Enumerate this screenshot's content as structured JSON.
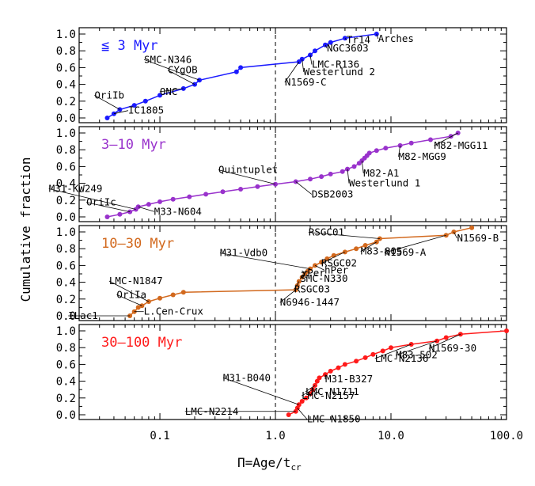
{
  "figure": {
    "ylabel": "Cumulative fraction",
    "xlabel_main": "Π=Age/t",
    "xlabel_sub": "cr",
    "xticks": [
      {
        "v": 0.1,
        "label": "0.1"
      },
      {
        "v": 1,
        "label": "1.0"
      },
      {
        "v": 10,
        "label": "10.0"
      },
      {
        "v": 100,
        "label": "100.0"
      }
    ],
    "yticks": [
      {
        "v": 0.0,
        "label": "0.0"
      },
      {
        "v": 0.2,
        "label": "0.2"
      },
      {
        "v": 0.4,
        "label": "0.4"
      },
      {
        "v": 0.6,
        "label": "0.6"
      },
      {
        "v": 0.8,
        "label": "0.8"
      },
      {
        "v": 1.0,
        "label": "1.0"
      }
    ],
    "vline_x": 1.0
  },
  "chart_data": [
    {
      "type": "line",
      "panel": "≦ 3 Myr",
      "title": "≦ 3 Myr",
      "color": "#1a1aff",
      "xscale": "log",
      "xlim": [
        0.02,
        100
      ],
      "ylim": [
        0,
        1.05
      ],
      "grid": false,
      "vline": 1.0,
      "points": [
        [
          0.035,
          0.0
        ],
        [
          0.04,
          0.05
        ],
        [
          0.045,
          0.1
        ],
        [
          0.06,
          0.15
        ],
        [
          0.075,
          0.2
        ],
        [
          0.1,
          0.27
        ],
        [
          0.16,
          0.35
        ],
        [
          0.2,
          0.4
        ],
        [
          0.22,
          0.45
        ],
        [
          0.46,
          0.55
        ],
        [
          0.5,
          0.6
        ],
        [
          1.6,
          0.67
        ],
        [
          1.7,
          0.7
        ],
        [
          2.0,
          0.75
        ],
        [
          2.2,
          0.8
        ],
        [
          2.7,
          0.87
        ],
        [
          3.0,
          0.9
        ],
        [
          4.0,
          0.95
        ],
        [
          7.5,
          1.0
        ]
      ],
      "labels": [
        {
          "text": "OriIb",
          "x": 0.045,
          "y": 0.1
        },
        {
          "text": "IC1805",
          "x": 0.04,
          "y": 0.05
        },
        {
          "text": "ONC",
          "x": 0.16,
          "y": 0.35
        },
        {
          "text": "CYgOB",
          "x": 0.2,
          "y": 0.4
        },
        {
          "text": "SMC-N346",
          "x": 0.22,
          "y": 0.45
        },
        {
          "text": "N1569-C",
          "x": 1.6,
          "y": 0.67
        },
        {
          "text": "Westerlund 2",
          "x": 1.7,
          "y": 0.7
        },
        {
          "text": "LMC-R136",
          "x": 2.0,
          "y": 0.75
        },
        {
          "text": "NGC3603",
          "x": 2.7,
          "y": 0.87
        },
        {
          "text": "Tr14",
          "x": 4.0,
          "y": 0.95
        },
        {
          "text": "Arches",
          "x": 7.5,
          "y": 1.0
        }
      ]
    },
    {
      "type": "line",
      "panel": "3–10 Myr",
      "title": "3–10 Myr",
      "color": "#9932cc",
      "xscale": "log",
      "xlim": [
        0.02,
        100
      ],
      "ylim": [
        0,
        1.05
      ],
      "grid": false,
      "vline": 1.0,
      "points": [
        [
          0.035,
          0.0
        ],
        [
          0.045,
          0.03
        ],
        [
          0.055,
          0.06
        ],
        [
          0.062,
          0.09
        ],
        [
          0.065,
          0.12
        ],
        [
          0.08,
          0.15
        ],
        [
          0.1,
          0.18
        ],
        [
          0.13,
          0.21
        ],
        [
          0.18,
          0.24
        ],
        [
          0.25,
          0.27
        ],
        [
          0.35,
          0.3
        ],
        [
          0.5,
          0.33
        ],
        [
          0.7,
          0.36
        ],
        [
          1.0,
          0.39
        ],
        [
          1.5,
          0.42
        ],
        [
          2.0,
          0.45
        ],
        [
          2.5,
          0.48
        ],
        [
          3.0,
          0.51
        ],
        [
          3.8,
          0.54
        ],
        [
          4.2,
          0.57
        ],
        [
          4.8,
          0.6
        ],
        [
          5.3,
          0.64
        ],
        [
          5.6,
          0.67
        ],
        [
          5.9,
          0.7
        ],
        [
          6.2,
          0.73
        ],
        [
          6.5,
          0.76
        ],
        [
          7.5,
          0.79
        ],
        [
          9.0,
          0.82
        ],
        [
          12.0,
          0.85
        ],
        [
          15.0,
          0.88
        ],
        [
          22.0,
          0.92
        ],
        [
          33.0,
          0.96
        ],
        [
          38.0,
          1.0
        ]
      ],
      "labels": [
        {
          "text": "M31-KW249",
          "x": 0.062,
          "y": 0.09
        },
        {
          "text": "OriIc",
          "x": 0.055,
          "y": 0.06
        },
        {
          "text": "M33-N604",
          "x": 0.065,
          "y": 0.12
        },
        {
          "text": "Quintuplet",
          "x": 1.0,
          "y": 0.39
        },
        {
          "text": "DSB2003",
          "x": 1.5,
          "y": 0.42
        },
        {
          "text": "Westerlund 1",
          "x": 4.2,
          "y": 0.57
        },
        {
          "text": "M82-A1",
          "x": 5.6,
          "y": 0.67
        },
        {
          "text": "M82-MGG9",
          "x": 12.0,
          "y": 0.85
        },
        {
          "text": "M82-MGG11",
          "x": 38.0,
          "y": 1.0
        }
      ]
    },
    {
      "type": "line",
      "panel": "10–30 Myr",
      "title": "10–30 Myr",
      "color": "#d2691e",
      "xscale": "log",
      "xlim": [
        0.02,
        100
      ],
      "ylim": [
        0,
        1.05
      ],
      "grid": false,
      "vline": 1.0,
      "points": [
        [
          0.055,
          0.0
        ],
        [
          0.06,
          0.05
        ],
        [
          0.065,
          0.1
        ],
        [
          0.07,
          0.12
        ],
        [
          0.08,
          0.17
        ],
        [
          0.1,
          0.21
        ],
        [
          0.13,
          0.25
        ],
        [
          0.16,
          0.28
        ],
        [
          1.5,
          0.31
        ],
        [
          1.55,
          0.36
        ],
        [
          1.6,
          0.41
        ],
        [
          1.7,
          0.46
        ],
        [
          1.8,
          0.5
        ],
        [
          1.9,
          0.53
        ],
        [
          2.0,
          0.56
        ],
        [
          2.2,
          0.6
        ],
        [
          2.5,
          0.64
        ],
        [
          2.8,
          0.68
        ],
        [
          3.2,
          0.72
        ],
        [
          4.0,
          0.76
        ],
        [
          5.0,
          0.8
        ],
        [
          6.0,
          0.84
        ],
        [
          7.5,
          0.88
        ],
        [
          8.0,
          0.92
        ],
        [
          30.0,
          0.96
        ],
        [
          35.0,
          1.0
        ],
        [
          50.0,
          1.05
        ]
      ],
      "labels": [
        {
          "text": "ILac1",
          "x": 0.055,
          "y": 0.0
        },
        {
          "text": "L.Cen-Crux",
          "x": 0.06,
          "y": 0.05
        },
        {
          "text": "OriIa",
          "x": 0.07,
          "y": 0.12
        },
        {
          "text": "LMC-N1847",
          "x": 0.08,
          "y": 0.17
        },
        {
          "text": "N6946-1447",
          "x": 1.5,
          "y": 0.31
        },
        {
          "text": "RSGC03",
          "x": 1.6,
          "y": 0.41
        },
        {
          "text": "SMC-N330",
          "x": 1.8,
          "y": 0.5
        },
        {
          "text": "χPer",
          "x": 1.9,
          "y": 0.53
        },
        {
          "text": "hPer",
          "x": 2.2,
          "y": 0.6
        },
        {
          "text": "M31-Vdb0",
          "x": 2.0,
          "y": 0.56
        },
        {
          "text": "RSGC02",
          "x": 4.0,
          "y": 0.76
        },
        {
          "text": "M83-805",
          "x": 7.5,
          "y": 0.88
        },
        {
          "text": "RSGC01",
          "x": 8.0,
          "y": 0.92
        },
        {
          "text": "N1569-A",
          "x": 30.0,
          "y": 0.96
        },
        {
          "text": "N1569-B",
          "x": 35.0,
          "y": 1.0
        }
      ]
    },
    {
      "type": "line",
      "panel": "30–100 Myr",
      "title": "30–100 Myr",
      "color": "#ff1a1a",
      "xscale": "log",
      "xlim": [
        0.02,
        100
      ],
      "ylim": [
        0,
        1.05
      ],
      "grid": false,
      "vline": 1.0,
      "points": [
        [
          1.3,
          0.0
        ],
        [
          1.5,
          0.04
        ],
        [
          1.55,
          0.08
        ],
        [
          1.6,
          0.12
        ],
        [
          1.7,
          0.16
        ],
        [
          1.85,
          0.2
        ],
        [
          2.0,
          0.25
        ],
        [
          2.1,
          0.3
        ],
        [
          2.2,
          0.35
        ],
        [
          2.3,
          0.4
        ],
        [
          2.4,
          0.44
        ],
        [
          2.7,
          0.48
        ],
        [
          3.0,
          0.52
        ],
        [
          3.5,
          0.56
        ],
        [
          4.0,
          0.6
        ],
        [
          5.0,
          0.64
        ],
        [
          6.0,
          0.68
        ],
        [
          7.0,
          0.72
        ],
        [
          8.5,
          0.76
        ],
        [
          10.0,
          0.8
        ],
        [
          15.0,
          0.84
        ],
        [
          25.0,
          0.88
        ],
        [
          30.0,
          0.92
        ],
        [
          40.0,
          0.96
        ],
        [
          100.0,
          1.0
        ]
      ],
      "labels": [
        {
          "text": "LMC-N2214",
          "x": 1.5,
          "y": 0.04
        },
        {
          "text": "LMC-N1850",
          "x": 1.55,
          "y": 0.08
        },
        {
          "text": "M31-B040",
          "x": 1.6,
          "y": 0.12
        },
        {
          "text": "LMC-N2157",
          "x": 2.1,
          "y": 0.3
        },
        {
          "text": "LMC-N1711",
          "x": 2.2,
          "y": 0.35
        },
        {
          "text": "M31-B327",
          "x": 2.7,
          "y": 0.48
        },
        {
          "text": "LMC-N2136",
          "x": 15.0,
          "y": 0.84
        },
        {
          "text": "M83-502",
          "x": 25.0,
          "y": 0.88
        },
        {
          "text": "N1569-30",
          "x": 40.0,
          "y": 0.96
        }
      ]
    }
  ]
}
